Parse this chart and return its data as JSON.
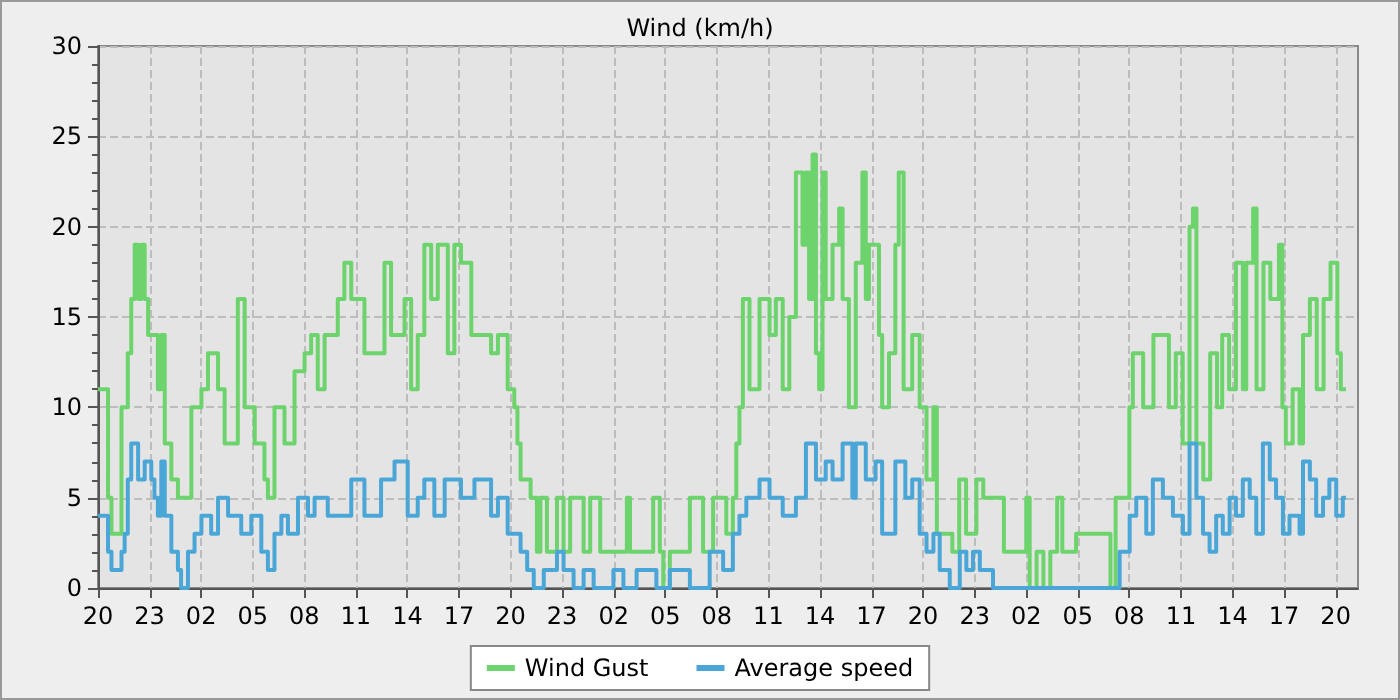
{
  "chart_data": {
    "type": "step",
    "title": "Wind (km/h)",
    "xlim": [
      "--01-01T20:00",
      "--01-04T21:18"
    ],
    "xticks": [
      {
        "value": "--01-01T20:00",
        "label": "20"
      },
      {
        "value": "--01-01T23:00",
        "label": "23"
      },
      {
        "value": "--01-02T02:00",
        "label": "02"
      },
      {
        "value": "--01-02T05:00",
        "label": "05"
      },
      {
        "value": "--01-02T08:00",
        "label": "08"
      },
      {
        "value": "--01-02T11:00",
        "label": "11"
      },
      {
        "value": "--01-02T14:00",
        "label": "14"
      },
      {
        "value": "--01-02T17:00",
        "label": "17"
      },
      {
        "value": "--01-02T20:00",
        "label": "20"
      },
      {
        "value": "--01-02T23:00",
        "label": "23"
      },
      {
        "value": "--01-03T02:00",
        "label": "02"
      },
      {
        "value": "--01-03T05:00",
        "label": "05"
      },
      {
        "value": "--01-03T08:00",
        "label": "08"
      },
      {
        "value": "--01-03T11:00",
        "label": "11"
      },
      {
        "value": "--01-03T14:00",
        "label": "14"
      },
      {
        "value": "--01-03T17:00",
        "label": "17"
      },
      {
        "value": "--01-03T20:00",
        "label": "20"
      },
      {
        "value": "--01-03T23:00",
        "label": "23"
      },
      {
        "value": "--01-04T02:00",
        "label": "02"
      },
      {
        "value": "--01-04T05:00",
        "label": "05"
      },
      {
        "value": "--01-04T08:00",
        "label": "08"
      },
      {
        "value": "--01-04T11:00",
        "label": "11"
      },
      {
        "value": "--01-04T14:00",
        "label": "14"
      },
      {
        "value": "--01-04T17:00",
        "label": "17"
      },
      {
        "value": "--01-04T20:00",
        "label": "20"
      }
    ],
    "ylim": [
      0,
      30
    ],
    "yticks": [
      0,
      5,
      10,
      15,
      20,
      25,
      30
    ],
    "grid": true,
    "legend": "bottom",
    "marker": "none",
    "line_style": "solid",
    "series": [
      {
        "name": "Wind Gust",
        "color": "#6dd46d",
        "x": [
          "--01-01T20:00",
          "--01-01T20:35",
          "--01-01T20:47",
          "--01-01T21:22",
          "--01-01T21:44",
          "--01-01T21:56",
          "--01-01T22:08",
          "--01-01T22:20",
          "--01-01T22:31",
          "--01-01T22:43",
          "--01-01T22:55",
          "--01-01T23:29",
          "--01-01T23:41",
          "--01-01T23:53",
          "--01-02T00:16",
          "--01-02T00:39",
          "--01-02T01:26",
          "--01-02T02:01",
          "--01-02T02:24",
          "--01-02T02:59",
          "--01-02T03:22",
          "--01-02T04:08",
          "--01-02T04:32",
          "--01-02T05:07",
          "--01-02T05:41",
          "--01-02T05:53",
          "--01-02T06:16",
          "--01-02T06:51",
          "--01-02T07:26",
          "--01-02T08:01",
          "--01-02T08:24",
          "--01-02T08:47",
          "--01-02T09:11",
          "--01-02T09:57",
          "--01-02T10:20",
          "--01-02T10:44",
          "--01-02T11:30",
          "--01-02T12:40",
          "--01-02T13:03",
          "--01-02T13:50",
          "--01-02T14:13",
          "--01-02T14:36",
          "--01-02T14:59",
          "--01-02T15:23",
          "--01-02T15:46",
          "--01-02T16:21",
          "--01-02T16:44",
          "--01-02T17:07",
          "--01-02T17:43",
          "--01-02T18:52",
          "--01-02T19:16",
          "--01-02T19:50",
          "--01-02T20:13",
          "--01-02T20:24",
          "--01-02T20:35",
          "--01-02T21:10",
          "--01-02T21:32",
          "--01-02T21:44",
          "--01-02T22:07",
          "--01-02T22:42",
          "--01-02T23:05",
          "--01-02T23:28",
          "--01-03T00:15",
          "--01-03T00:38",
          "--01-03T01:13",
          "--01-03T02:46",
          "--01-03T02:57",
          "--01-03T04:18",
          "--01-03T04:41",
          "--01-03T04:53",
          "--01-03T05:16",
          "--01-03T06:26",
          "--01-03T07:12",
          "--01-03T07:47",
          "--01-03T08:33",
          "--01-03T08:56",
          "--01-03T09:08",
          "--01-03T09:19",
          "--01-03T09:31",
          "--01-03T09:54",
          "--01-03T10:29",
          "--01-03T11:04",
          "--01-03T11:26",
          "--01-03T11:50",
          "--01-03T12:13",
          "--01-03T12:36",
          "--01-03T12:59",
          "--01-03T13:11",
          "--01-03T13:22",
          "--01-03T13:34",
          "--01-03T13:46",
          "--01-03T13:57",
          "--01-03T14:09",
          "--01-03T14:20",
          "--01-03T14:44",
          "--01-03T15:07",
          "--01-03T15:19",
          "--01-03T15:41",
          "--01-03T16:05",
          "--01-03T16:28",
          "--01-03T16:40",
          "--01-03T16:51",
          "--01-03T17:26",
          "--01-03T17:37",
          "--01-03T18:01",
          "--01-03T18:23",
          "--01-03T18:35",
          "--01-03T18:52",
          "--01-03T19:22",
          "--01-03T19:36",
          "--01-03T19:48",
          "--01-03T20:12",
          "--01-03T20:36",
          "--01-03T20:48",
          "--01-03T21:42",
          "--01-03T22:06",
          "--01-03T22:30",
          "--01-03T23:06",
          "--01-03T23:30",
          "--01-04T00:42",
          "--01-04T02:00",
          "--01-04T02:12",
          "--01-04T02:36",
          "--01-04T03:00",
          "--01-04T03:24",
          "--01-04T03:48",
          "--01-04T04:06",
          "--01-04T04:54",
          "--01-04T06:54",
          "--01-04T07:12",
          "--01-04T08:00",
          "--01-04T08:12",
          "--01-04T08:48",
          "--01-04T09:24",
          "--01-04T10:18",
          "--01-04T10:42",
          "--01-04T11:06",
          "--01-04T11:30",
          "--01-04T11:42",
          "--01-04T11:54",
          "--01-04T12:18",
          "--01-04T12:42",
          "--01-04T13:06",
          "--01-04T13:24",
          "--01-04T13:48",
          "--01-04T14:12",
          "--01-04T14:36",
          "--01-04T14:48",
          "--01-04T15:12",
          "--01-04T15:24",
          "--01-04T15:48",
          "--01-04T16:12",
          "--01-04T16:42",
          "--01-04T16:54",
          "--01-04T17:06",
          "--01-04T17:30",
          "--01-04T17:54",
          "--01-04T18:06",
          "--01-04T18:30",
          "--01-04T18:54",
          "--01-04T19:18",
          "--01-04T19:42",
          "--01-04T20:06",
          "--01-04T20:18",
          "--01-04T20:36"
        ],
        "values": [
          11,
          5,
          3,
          10,
          13,
          16,
          19,
          16,
          19,
          16,
          14,
          11,
          14,
          8,
          6,
          5,
          10,
          11,
          13,
          11,
          8,
          16,
          10,
          8,
          6,
          5,
          10,
          8,
          12,
          13,
          14,
          11,
          14,
          16,
          18,
          16,
          13,
          18,
          14,
          16,
          11,
          14,
          19,
          16,
          19,
          13,
          19,
          18,
          14,
          13,
          14,
          11,
          10,
          8,
          6,
          5,
          2,
          5,
          2,
          5,
          2,
          5,
          2,
          5,
          2,
          5,
          2,
          5,
          2,
          0,
          2,
          5,
          2,
          5,
          3,
          5,
          8,
          10,
          16,
          11,
          16,
          14,
          16,
          11,
          15,
          23,
          19,
          23,
          16,
          24,
          13,
          11,
          23,
          16,
          19,
          21,
          16,
          10,
          18,
          23,
          16,
          19,
          14,
          10,
          13,
          19,
          23,
          11,
          14,
          14,
          10,
          6,
          10,
          3,
          2,
          6,
          3,
          6,
          5,
          2,
          5,
          0,
          2,
          0,
          2,
          5,
          2,
          3,
          0,
          5,
          10,
          13,
          10,
          14,
          10,
          13,
          8,
          20,
          21,
          8,
          6,
          13,
          10,
          14,
          11,
          18,
          11,
          18,
          21,
          11,
          18,
          16,
          19,
          10,
          8,
          11,
          8,
          14,
          16,
          11,
          16,
          18,
          13,
          11,
          11
        ]
      },
      {
        "name": "Average speed",
        "color": "#4ba6d8",
        "x": [
          "--01-01T20:00",
          "--01-01T20:35",
          "--01-01T20:47",
          "--01-01T21:22",
          "--01-01T21:33",
          "--01-01T21:44",
          "--01-01T21:56",
          "--01-01T22:20",
          "--01-01T22:43",
          "--01-01T23:06",
          "--01-01T23:17",
          "--01-01T23:29",
          "--01-01T23:41",
          "--01-01T23:53",
          "--01-02T00:16",
          "--01-02T00:39",
          "--01-02T00:50",
          "--01-02T01:14",
          "--01-02T01:37",
          "--01-02T02:01",
          "--01-02T02:35",
          "--01-02T02:59",
          "--01-02T03:34",
          "--01-02T04:20",
          "--01-02T04:55",
          "--01-02T05:30",
          "--01-02T05:53",
          "--01-02T06:16",
          "--01-02T06:40",
          "--01-02T07:03",
          "--01-02T07:38",
          "--01-02T08:13",
          "--01-02T08:36",
          "--01-02T09:22",
          "--01-02T10:44",
          "--01-02T11:30",
          "--01-02T12:28",
          "--01-02T13:15",
          "--01-02T14:01",
          "--01-02T14:36",
          "--01-02T14:59",
          "--01-02T15:34",
          "--01-02T16:10",
          "--01-02T17:07",
          "--01-02T17:54",
          "--01-02T18:52",
          "--01-02T19:16",
          "--01-02T19:50",
          "--01-02T20:11",
          "--01-02T20:35",
          "--01-02T20:58",
          "--01-02T21:21",
          "--01-02T21:56",
          "--01-02T22:42",
          "--01-02T23:05",
          "--01-02T23:40",
          "--01-03T00:15",
          "--01-03T00:50",
          "--01-03T01:59",
          "--01-03T02:34",
          "--01-03T03:20",
          "--01-03T04:29",
          "--01-03T05:16",
          "--01-03T06:26",
          "--01-03T07:35",
          "--01-03T08:22",
          "--01-03T08:56",
          "--01-03T09:19",
          "--01-03T09:43",
          "--01-03T10:29",
          "--01-03T11:04",
          "--01-03T11:50",
          "--01-03T12:36",
          "--01-03T13:11",
          "--01-03T13:46",
          "--01-03T14:20",
          "--01-03T14:44",
          "--01-03T15:19",
          "--01-03T15:53",
          "--01-03T16:05",
          "--01-03T16:40",
          "--01-03T17:14",
          "--01-03T17:37",
          "--01-03T18:23",
          "--01-03T18:58",
          "--01-03T19:22",
          "--01-03T19:36",
          "--01-03T19:48",
          "--01-03T20:12",
          "--01-03T20:36",
          "--01-03T20:58",
          "--01-03T21:33",
          "--01-03T22:08",
          "--01-03T22:31",
          "--01-03T22:54",
          "--01-03T23:18",
          "--01-04T00:04",
          "--01-04T07:26",
          "--01-04T08:01",
          "--01-04T08:24",
          "--01-04T08:59",
          "--01-04T09:22",
          "--01-04T09:57",
          "--01-04T10:32",
          "--01-04T11:07",
          "--01-04T11:30",
          "--01-04T11:54",
          "--01-04T12:17",
          "--01-04T12:40",
          "--01-04T13:03",
          "--01-04T13:26",
          "--01-04T13:50",
          "--01-04T14:12",
          "--01-04T14:36",
          "--01-04T15:00",
          "--01-04T15:23",
          "--01-04T15:46",
          "--01-04T16:10",
          "--01-04T16:32",
          "--01-04T16:56",
          "--01-04T17:19",
          "--01-04T17:54",
          "--01-04T18:06",
          "--01-04T18:30",
          "--01-04T18:52",
          "--01-04T19:16",
          "--01-04T19:38",
          "--01-04T20:02",
          "--01-04T20:25",
          "--01-04T20:36"
        ],
        "values": [
          4,
          2,
          1,
          2,
          3,
          6,
          8,
          6,
          7,
          6,
          5,
          4,
          7,
          4,
          2,
          1,
          0,
          2,
          3,
          4,
          3,
          5,
          4,
          3,
          4,
          2,
          1,
          3,
          4,
          3,
          5,
          4,
          5,
          4,
          6,
          4,
          6,
          7,
          4,
          5,
          6,
          4,
          6,
          5,
          6,
          4,
          5,
          3,
          3,
          2,
          1,
          0,
          1,
          2,
          1,
          0,
          1,
          0,
          1,
          0,
          1,
          0,
          1,
          0,
          2,
          1,
          3,
          4,
          5,
          6,
          5,
          4,
          5,
          8,
          6,
          7,
          6,
          8,
          5,
          8,
          6,
          7,
          3,
          7,
          5,
          6,
          6,
          3,
          2,
          3,
          1,
          0,
          2,
          1,
          2,
          1,
          0,
          2,
          4,
          5,
          3,
          6,
          5,
          4,
          3,
          8,
          5,
          3,
          2,
          4,
          3,
          5,
          4,
          6,
          5,
          3,
          8,
          6,
          5,
          3,
          4,
          3,
          7,
          6,
          4,
          5,
          6,
          4,
          5,
          5
        ]
      }
    ]
  }
}
